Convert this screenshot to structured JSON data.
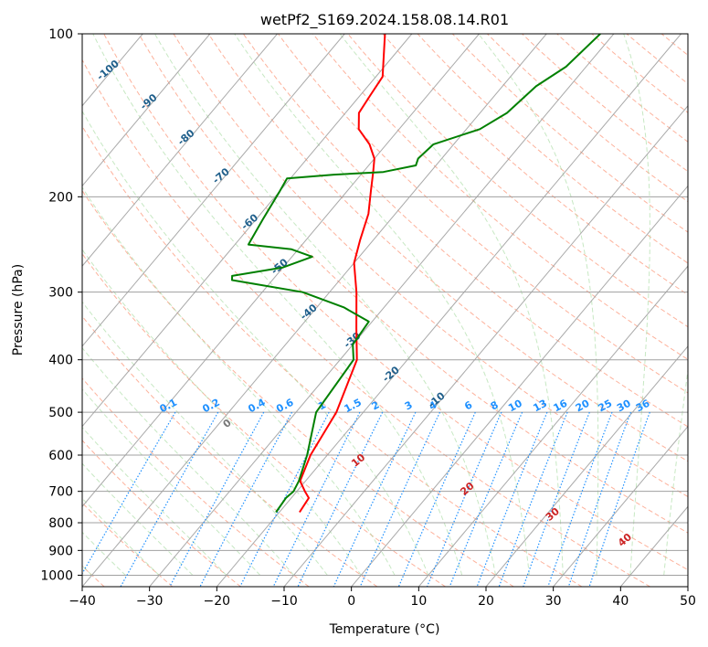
{
  "chart_data": {
    "type": "line",
    "title": "wetPf2_S169.2024.158.08.14.R01",
    "xlabel": "Temperature (°C)",
    "ylabel": "Pressure (hPa)",
    "xlim": [
      -40,
      50
    ],
    "ylim": [
      1050,
      100
    ],
    "y_scale": "log",
    "skew": "skew-T",
    "x_ticks": [
      -40,
      -30,
      -20,
      -10,
      0,
      10,
      20,
      30,
      40,
      50
    ],
    "x_tick_labels": [
      "−40",
      "−30",
      "−20",
      "−10",
      "0",
      "10",
      "20",
      "30",
      "40",
      "50"
    ],
    "y_ticks": [
      1000,
      900,
      800,
      700,
      600,
      500,
      400,
      300,
      200,
      100
    ],
    "y_tick_labels": [
      "1000",
      "900",
      "800",
      "700",
      "600",
      "500",
      "400",
      "300",
      "200",
      "100"
    ],
    "grid": true,
    "series": [
      {
        "color": "#ff0000",
        "points": [
          {
            "p": 765,
            "t": -17.0
          },
          {
            "p": 720,
            "t": -17.4
          },
          {
            "p": 700,
            "t": -18.8
          },
          {
            "p": 670,
            "t": -20.8
          },
          {
            "p": 600,
            "t": -22.5
          },
          {
            "p": 500,
            "t": -24.0
          },
          {
            "p": 400,
            "t": -27.5
          },
          {
            "p": 350,
            "t": -31.5
          },
          {
            "p": 300,
            "t": -36.0
          },
          {
            "p": 265,
            "t": -40.0
          },
          {
            "p": 240,
            "t": -42.0
          },
          {
            "p": 215,
            "t": -44.0
          },
          {
            "p": 195,
            "t": -46.5
          },
          {
            "p": 180,
            "t": -48.5
          },
          {
            "p": 170,
            "t": -50.0
          },
          {
            "p": 160,
            "t": -52.5
          },
          {
            "p": 150,
            "t": -56.0
          },
          {
            "p": 140,
            "t": -58.0
          },
          {
            "p": 130,
            "t": -58.5
          },
          {
            "p": 120,
            "t": -59.0
          },
          {
            "p": 100,
            "t": -64.0
          }
        ]
      },
      {
        "color": "#008000",
        "points": [
          {
            "p": 765,
            "t": -20.5
          },
          {
            "p": 720,
            "t": -20.8
          },
          {
            "p": 700,
            "t": -20.5
          },
          {
            "p": 670,
            "t": -21.0
          },
          {
            "p": 600,
            "t": -23.0
          },
          {
            "p": 500,
            "t": -27.0
          },
          {
            "p": 400,
            "t": -28.0
          },
          {
            "p": 375,
            "t": -30.0
          },
          {
            "p": 340,
            "t": -30.5
          },
          {
            "p": 320,
            "t": -36.0
          },
          {
            "p": 300,
            "t": -44.0
          },
          {
            "p": 290,
            "t": -52.0
          },
          {
            "p": 285,
            "t": -56.0
          },
          {
            "p": 280,
            "t": -56.5
          },
          {
            "p": 270,
            "t": -50.0
          },
          {
            "p": 258,
            "t": -47.0
          },
          {
            "p": 250,
            "t": -51.0
          },
          {
            "p": 245,
            "t": -58.0
          },
          {
            "p": 220,
            "t": -59.0
          },
          {
            "p": 195,
            "t": -60.0
          },
          {
            "p": 185,
            "t": -60.5
          },
          {
            "p": 182,
            "t": -54.0
          },
          {
            "p": 180,
            "t": -47.0
          },
          {
            "p": 175,
            "t": -43.0
          },
          {
            "p": 170,
            "t": -43.5
          },
          {
            "p": 160,
            "t": -43.0
          },
          {
            "p": 150,
            "t": -38.0
          },
          {
            "p": 140,
            "t": -36.0
          },
          {
            "p": 125,
            "t": -35.0
          },
          {
            "p": 115,
            "t": -33.0
          },
          {
            "p": 100,
            "t": -32.0
          }
        ]
      }
    ],
    "dry_adiabat_labels": [
      "-100",
      "-90",
      "-80",
      "-70",
      "-60",
      "-50",
      "-40",
      "-30",
      "-20",
      "-10"
    ],
    "mixing_ratio_labels": [
      "0.1",
      "0.2",
      "0.4",
      "0.6",
      "1",
      "1.5",
      "2",
      "3",
      "4",
      "6",
      "8",
      "10",
      "13",
      "16",
      "20",
      "25",
      "30",
      "36"
    ],
    "moist_adiabat_labels": [
      "0",
      "10",
      "20",
      "30",
      "40"
    ],
    "colors": {
      "temperature": "#ff0000",
      "dewpoint": "#008000",
      "isotherm": "#a0a0a0",
      "dry_adiabat": "#fc9272",
      "moist_adiabat": "#a1d99b",
      "mixing_ratio": "#1e90ff",
      "dry_label": "#1f5f8b",
      "moist_label": "#cc2222"
    }
  }
}
